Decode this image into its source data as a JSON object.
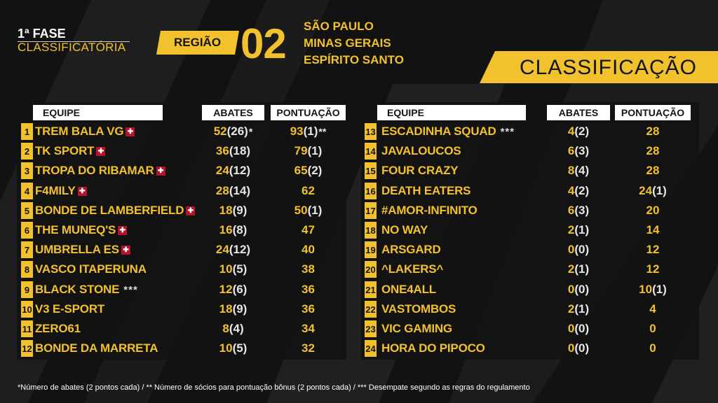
{
  "header": {
    "phase_title": "1ª FASE",
    "phase_subtitle": "CLASSIFICATÓRIA",
    "region_label": "REGIÃO",
    "region_number": "02",
    "states": [
      "SÃO PAULO",
      "MINAS GERAIS",
      "ESPÍRITO SANTO"
    ],
    "classification_label": "CLASSIFICAÇÃO"
  },
  "columns": {
    "team": "EQUIPE",
    "kills": "ABATES",
    "points": "PONTUAÇÃO"
  },
  "left_table": [
    {
      "rank": "1",
      "team": "TREM BALA VG",
      "badge": "cross",
      "note": "",
      "kills": "52",
      "kills_paren": "(26)",
      "kills_mark": "*",
      "points": "93",
      "points_paren": "(1)",
      "points_mark": "**"
    },
    {
      "rank": "2",
      "team": "TK SPORT",
      "badge": "cross",
      "note": "",
      "kills": "36",
      "kills_paren": "(18)",
      "kills_mark": "",
      "points": "79",
      "points_paren": "(1)",
      "points_mark": ""
    },
    {
      "rank": "3",
      "team": "TROPA DO RIBAMAR",
      "badge": "cross",
      "note": "",
      "kills": "24",
      "kills_paren": "(12)",
      "kills_mark": "",
      "points": "65",
      "points_paren": "(2)",
      "points_mark": ""
    },
    {
      "rank": "4",
      "team": "F4MILY",
      "badge": "cross",
      "note": "",
      "kills": "28",
      "kills_paren": "(14)",
      "kills_mark": "",
      "points": "62",
      "points_paren": "",
      "points_mark": ""
    },
    {
      "rank": "5",
      "team": "BONDE DE LAMBERFIELD",
      "badge": "cross",
      "note": "",
      "kills": "18",
      "kills_paren": "(9)",
      "kills_mark": "",
      "points": "50",
      "points_paren": "(1)",
      "points_mark": ""
    },
    {
      "rank": "6",
      "team": "THE MUNEQ'S",
      "badge": "cross",
      "note": "",
      "kills": "16",
      "kills_paren": "(8)",
      "kills_mark": "",
      "points": "47",
      "points_paren": "",
      "points_mark": ""
    },
    {
      "rank": "7",
      "team": "UMBRELLA ES",
      "badge": "cross",
      "note": "",
      "kills": "24",
      "kills_paren": "(12)",
      "kills_mark": "",
      "points": "40",
      "points_paren": "",
      "points_mark": ""
    },
    {
      "rank": "8",
      "team": "VASCO ITAPERUNA",
      "badge": "",
      "note": "",
      "kills": "10",
      "kills_paren": "(5)",
      "kills_mark": "",
      "points": "38",
      "points_paren": "",
      "points_mark": ""
    },
    {
      "rank": "9",
      "team": "BLACK STONE",
      "badge": "",
      "note": "***",
      "kills": "12",
      "kills_paren": "(6)",
      "kills_mark": "",
      "points": "36",
      "points_paren": "",
      "points_mark": ""
    },
    {
      "rank": "10",
      "team": "V3 E-SPORT",
      "badge": "",
      "note": "",
      "kills": "18",
      "kills_paren": "(9)",
      "kills_mark": "",
      "points": "36",
      "points_paren": "",
      "points_mark": ""
    },
    {
      "rank": "11",
      "team": "ZERO61",
      "badge": "",
      "note": "",
      "kills": "8",
      "kills_paren": "(4)",
      "kills_mark": "",
      "points": "34",
      "points_paren": "",
      "points_mark": ""
    },
    {
      "rank": "12",
      "team": "BONDE DA MARRETA",
      "badge": "",
      "note": "",
      "kills": "10",
      "kills_paren": "(5)",
      "kills_mark": "",
      "points": "32",
      "points_paren": "",
      "points_mark": ""
    }
  ],
  "right_table": [
    {
      "rank": "13",
      "team": "ESCADINHA SQUAD",
      "badge": "",
      "note": "***",
      "kills": "4",
      "kills_paren": "(2)",
      "kills_mark": "",
      "points": "28",
      "points_paren": "",
      "points_mark": ""
    },
    {
      "rank": "14",
      "team": "JAVALOUCOS",
      "badge": "",
      "note": "",
      "kills": "6",
      "kills_paren": "(3)",
      "kills_mark": "",
      "points": "28",
      "points_paren": "",
      "points_mark": ""
    },
    {
      "rank": "15",
      "team": "FOUR CRAZY",
      "badge": "",
      "note": "",
      "kills": "8",
      "kills_paren": "(4)",
      "kills_mark": "",
      "points": "28",
      "points_paren": "",
      "points_mark": ""
    },
    {
      "rank": "16",
      "team": "DEATH EATERS",
      "badge": "",
      "note": "",
      "kills": "4",
      "kills_paren": "(2)",
      "kills_mark": "",
      "points": "24",
      "points_paren": "(1)",
      "points_mark": ""
    },
    {
      "rank": "17",
      "team": "#AMOR-INFINITO",
      "badge": "",
      "note": "",
      "kills": "6",
      "kills_paren": "(3)",
      "kills_mark": "",
      "points": "20",
      "points_paren": "",
      "points_mark": ""
    },
    {
      "rank": "18",
      "team": "NO WAY",
      "badge": "",
      "note": "",
      "kills": "2",
      "kills_paren": "(1)",
      "kills_mark": "",
      "points": "14",
      "points_paren": "",
      "points_mark": ""
    },
    {
      "rank": "19",
      "team": "ARSGARD",
      "badge": "",
      "note": "",
      "kills": "0",
      "kills_paren": "(0)",
      "kills_mark": "",
      "points": "12",
      "points_paren": "",
      "points_mark": ""
    },
    {
      "rank": "20",
      "team": "^LAKERS^",
      "badge": "",
      "note": "",
      "kills": "2",
      "kills_paren": "(1)",
      "kills_mark": "",
      "points": "12",
      "points_paren": "",
      "points_mark": ""
    },
    {
      "rank": "21",
      "team": "ONE4ALL",
      "badge": "",
      "note": "",
      "kills": "0",
      "kills_paren": "(0)",
      "kills_mark": "",
      "points": "10",
      "points_paren": "(1)",
      "points_mark": ""
    },
    {
      "rank": "22",
      "team": "VASTOMBOS",
      "badge": "",
      "note": "",
      "kills": "2",
      "kills_paren": "(1)",
      "kills_mark": "",
      "points": "4",
      "points_paren": "",
      "points_mark": ""
    },
    {
      "rank": "23",
      "team": "VIC GAMING",
      "badge": "",
      "note": "",
      "kills": "0",
      "kills_paren": "(0)",
      "kills_mark": "",
      "points": "0",
      "points_paren": "",
      "points_mark": ""
    },
    {
      "rank": "24",
      "team": "HORA DO PIPOCO",
      "badge": "",
      "note": "",
      "kills": "0",
      "kills_paren": "(0)",
      "kills_mark": "",
      "points": "0",
      "points_paren": "",
      "points_mark": ""
    }
  ],
  "footnote": "*Número de abates (2 pontos cada) / ** Número de sócios para pontuação bônus (2 pontos cada) / *** Desempate segundo as regras do regulamento",
  "colors": {
    "accent": "#f2c12e",
    "background": "#121212",
    "badge": "#b5122b"
  },
  "icons": {
    "club_badge": "cross-badge-icon"
  }
}
